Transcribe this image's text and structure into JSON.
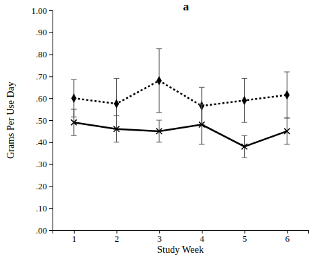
{
  "chart_data": {
    "type": "line",
    "title": "a",
    "x_label": "Study Week",
    "y_label": "Grams Per Use Day",
    "x": [
      1,
      2,
      3,
      4,
      5,
      6
    ],
    "xlim": [
      0.5,
      6.5
    ],
    "xticks": [
      1,
      2,
      3,
      4,
      5,
      6
    ],
    "ylim": [
      0,
      1
    ],
    "yticks": [
      {
        "value": 0,
        "label": ".00"
      },
      {
        "value": 0.1,
        "label": ".10"
      },
      {
        "value": 0.2,
        "label": ".20"
      },
      {
        "value": 0.3,
        "label": ".30"
      },
      {
        "value": 0.4,
        "label": ".40"
      },
      {
        "value": 0.5,
        "label": ".50"
      },
      {
        "value": 0.6,
        "label": ".60"
      },
      {
        "value": 0.7,
        "label": ".70"
      },
      {
        "value": 0.8,
        "label": ".80"
      },
      {
        "value": 0.9,
        "label": ".90"
      },
      {
        "value": 1,
        "label": "1.00"
      }
    ],
    "grid": false,
    "series": [
      {
        "color": "#000000",
        "marker": "diamond",
        "line_style": "dotted",
        "values": [
          0.6,
          0.575,
          0.68,
          0.565,
          0.59,
          0.615
        ],
        "errors": [
          0.085,
          0.115,
          0.145,
          0.085,
          0.1,
          0.105
        ]
      },
      {
        "color": "#000000",
        "marker": "x",
        "line_style": "solid",
        "values": [
          0.49,
          0.46,
          0.45,
          0.48,
          0.38,
          0.45
        ],
        "errors": [
          0.06,
          0.06,
          0.05,
          0.09,
          0.05,
          0.06
        ]
      }
    ]
  }
}
